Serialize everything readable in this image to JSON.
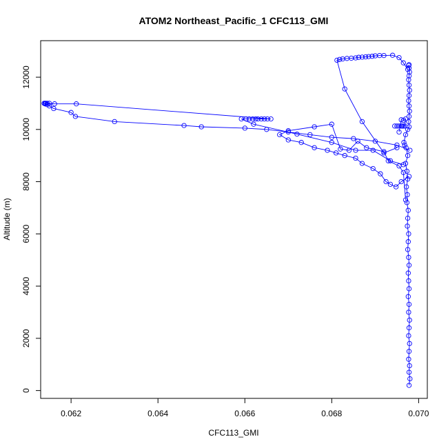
{
  "chart_data": {
    "type": "scatter",
    "title": "ATOM2 Northeast_Pacific_1 CFC113_GMI",
    "xlabel": "CFC113_GMI",
    "ylabel": "Altitude (m)",
    "xlim": [
      0.0613,
      0.0702
    ],
    "ylim": [
      -300,
      13400
    ],
    "x_ticks": [
      {
        "value": 0.062,
        "label": "0.062"
      },
      {
        "value": 0.064,
        "label": "0.064"
      },
      {
        "value": 0.066,
        "label": "0.066"
      },
      {
        "value": 0.068,
        "label": "0.068"
      },
      {
        "value": 0.07,
        "label": "0.070"
      }
    ],
    "y_ticks": [
      {
        "value": 0,
        "label": "0"
      },
      {
        "value": 2000,
        "label": "2000"
      },
      {
        "value": 4000,
        "label": "4000"
      },
      {
        "value": 6000,
        "label": "6000"
      },
      {
        "value": 8000,
        "label": "8000"
      },
      {
        "value": 10000,
        "label": "10000"
      },
      {
        "value": 12000,
        "label": "12000"
      }
    ],
    "grid": false,
    "marker": "open-circle",
    "connected": true,
    "color": "#0000ff",
    "series": [
      {
        "x": [
          0.06978,
          0.0698,
          0.06978,
          0.06979,
          0.06977,
          0.06978,
          0.06979,
          0.06977,
          0.06978,
          0.06979,
          0.06977,
          0.06978,
          0.06976,
          0.06978,
          0.06977,
          0.06976,
          0.06978,
          0.06977,
          0.06975,
          0.06976,
          0.06977,
          0.06974,
          0.06975,
          0.06976,
          0.06973,
          0.06974,
          0.06972,
          0.06975,
          0.06973,
          0.0697,
          0.06975,
          0.06971,
          0.06968,
          0.06966,
          0.0697,
          0.06975,
          0.06978,
          0.06977,
          0.06978,
          0.06979,
          0.06978,
          0.06977,
          0.06978,
          0.06979,
          0.06978,
          0.06977,
          0.06978,
          0.06979,
          0.06978,
          0.06977,
          0.06978
        ],
        "y": [
          200,
          450,
          700,
          950,
          1200,
          1500,
          1800,
          2100,
          2400,
          2700,
          3000,
          3300,
          3600,
          3900,
          4200,
          4500,
          4800,
          5100,
          5400,
          5700,
          6000,
          6300,
          6600,
          6900,
          7200,
          7500,
          7800,
          8100,
          8400,
          8700,
          9000,
          9300,
          9400,
          9500,
          9800,
          10000,
          10100,
          10300,
          10500,
          10700,
          10900,
          11100,
          11300,
          11500,
          11700,
          11900,
          12050,
          12200,
          12350,
          12450,
          12480
        ]
      },
      {
        "x": [
          0.06975,
          0.06965,
          0.06955,
          0.0694,
          0.0692,
          0.0691,
          0.069,
          0.06893,
          0.06885,
          0.06878,
          0.0687,
          0.06862,
          0.06855,
          0.06845,
          0.06835,
          0.06825,
          0.06818,
          0.06812,
          0.0683,
          0.0687,
          0.0692,
          0.0695
        ],
        "y": [
          12300,
          12550,
          12750,
          12840,
          12830,
          12830,
          12820,
          12800,
          12790,
          12780,
          12770,
          12760,
          12740,
          12730,
          12720,
          12700,
          12680,
          12650,
          11550,
          10300,
          9100,
          9300
        ]
      },
      {
        "x": [
          0.0698,
          0.0695,
          0.069,
          0.0685,
          0.068,
          0.0675,
          0.067,
          0.0665,
          0.066,
          0.065,
          0.0646,
          0.063,
          0.0621,
          0.062,
          0.0616,
          0.0615,
          0.06145,
          0.0614,
          0.06138,
          0.0614,
          0.06142,
          0.06145,
          0.0615,
          0.06162,
          0.06212,
          0.0666,
          0.06652,
          0.06645,
          0.06638,
          0.0663,
          0.06625,
          0.06618,
          0.0661,
          0.06603,
          0.06592,
          0.0662,
          0.0672,
          0.068,
          0.06855,
          0.06895,
          0.06935,
          0.06965
        ],
        "y": [
          9200,
          9400,
          9550,
          9650,
          9700,
          9800,
          9900,
          10000,
          10050,
          10100,
          10150,
          10300,
          10500,
          10650,
          10800,
          10900,
          10950,
          10980,
          11000,
          11000,
          11000,
          11000,
          11000,
          10980,
          10980,
          10400,
          10400,
          10400,
          10400,
          10400,
          10400,
          10400,
          10400,
          10400,
          10400,
          10200,
          9820,
          9500,
          9200,
          9200,
          8800,
          8650
        ]
      },
      {
        "x": [
          0.06978,
          0.0696,
          0.06948,
          0.06935,
          0.06925,
          0.06912,
          0.06895,
          0.0687,
          0.06855,
          0.0683,
          0.0681,
          0.0679,
          0.0676,
          0.0673,
          0.067,
          0.0668,
          0.067,
          0.0676,
          0.068,
          0.0682,
          0.0684,
          0.0686,
          0.0688,
          0.0692,
          0.0693,
          0.06955,
          0.06965,
          0.0697
        ],
        "y": [
          8200,
          8000,
          7800,
          7900,
          8000,
          8300,
          8500,
          8700,
          8900,
          9000,
          9100,
          9200,
          9300,
          9500,
          9600,
          9800,
          9950,
          10100,
          10200,
          9250,
          9200,
          9550,
          9300,
          9150,
          8800,
          8600,
          8350,
          7300
        ]
      },
      {
        "x": [
          0.06945,
          0.0695,
          0.06955,
          0.0696,
          0.06962,
          0.06965,
          0.06968,
          0.0697,
          0.06965,
          0.0696,
          0.06955
        ],
        "y": [
          10130,
          10130,
          10130,
          10130,
          10130,
          10130,
          10130,
          10400,
          10350,
          10370,
          9900
        ]
      }
    ]
  }
}
